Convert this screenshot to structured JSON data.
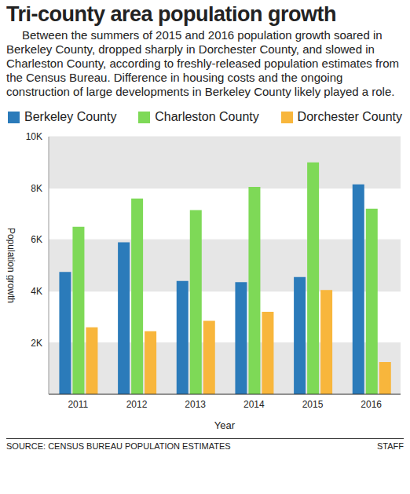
{
  "chart_data": {
    "type": "bar",
    "title": "Tri-county area population growth",
    "subtitle": "Between the summers of 2015 and 2016 population growth soared in Berkeley County, dropped sharply in Dorchester County, and slowed in Charleston County, according to freshly-released population estimates from the Census Bureau. Difference in housing costs and the ongoing construction of large developments in Berkeley County likely played a role.",
    "x_label": "Year",
    "y_label": "Population growth",
    "categories": [
      "2011",
      "2012",
      "2013",
      "2014",
      "2015",
      "2016"
    ],
    "series": [
      {
        "name": "Berkeley County",
        "color": "#2b7bba",
        "values": [
          4750,
          5900,
          4400,
          4350,
          4550,
          8150
        ]
      },
      {
        "name": "Charleston County",
        "color": "#7ed957",
        "values": [
          6500,
          7600,
          7150,
          8050,
          9000,
          7200
        ]
      },
      {
        "name": "Dorchester County",
        "color": "#f8b63c",
        "values": [
          2600,
          2450,
          2850,
          3200,
          4050,
          1250
        ]
      }
    ],
    "ylim": [
      0,
      10000
    ],
    "yticks": [
      {
        "value": 2000,
        "label": "2K"
      },
      {
        "value": 4000,
        "label": "4K"
      },
      {
        "value": 6000,
        "label": "6K"
      },
      {
        "value": 8000,
        "label": "8K"
      },
      {
        "value": 10000,
        "label": "10K"
      }
    ],
    "grid": true,
    "legend": "top",
    "source": "SOURCE: CENSUS BUREAU POPULATION ESTIMATES",
    "credit": "STAFF"
  }
}
